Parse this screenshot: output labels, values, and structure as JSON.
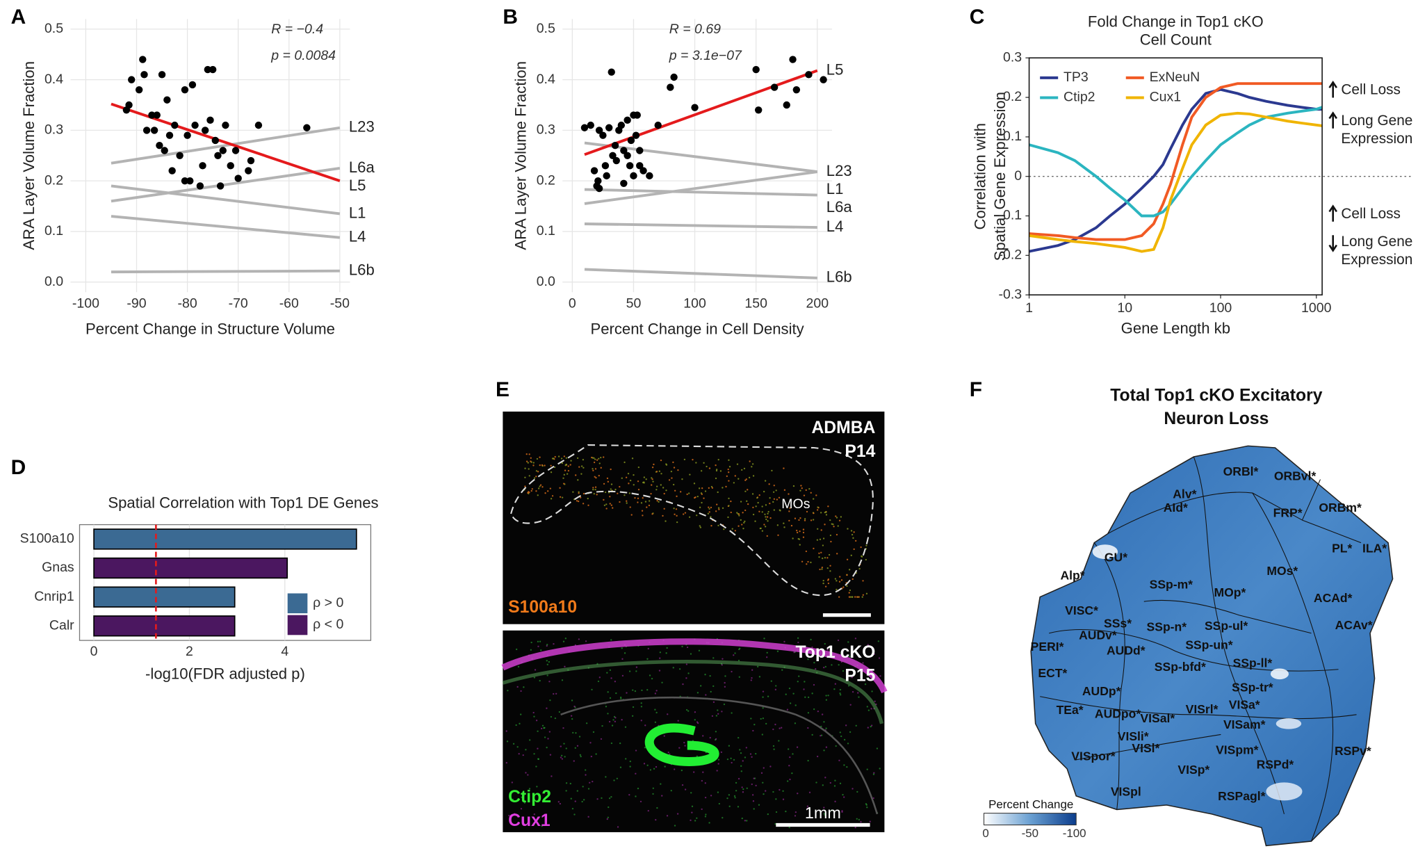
{
  "chart_data": [
    {
      "type": "scatter",
      "panel_label": "A",
      "x_label": "Percent Change in Structure Volume",
      "y_label": "ARA Layer Volume Fraction",
      "annotations": [
        "R = −0.4",
        "p = 0.0084"
      ],
      "grid": true,
      "xlim": [
        -103,
        -48
      ],
      "xticks": [
        -100,
        -90,
        -80,
        -70,
        -60,
        -50
      ],
      "ylim": [
        -0.02,
        0.52
      ],
      "yticks": [
        {
          "value": 0,
          "label": "0.0"
        },
        0.1,
        0.2,
        0.3,
        0.4,
        0.5
      ],
      "points": {
        "color": "#000000",
        "x": [
          -92,
          -91.5,
          -91,
          -89.5,
          -88.8,
          -88.5,
          -88,
          -87,
          -86.5,
          -86,
          -85.5,
          -85,
          -84.5,
          -84,
          -83.5,
          -83,
          -82.5,
          -81.5,
          -80.5,
          -80,
          -79.5,
          -79,
          -78.5,
          -77.5,
          -77,
          -76.5,
          -76,
          -75.5,
          -75,
          -74.5,
          -74,
          -73.5,
          -73,
          -72.5,
          -71.5,
          -70.5,
          -70,
          -68,
          -67.5,
          -66,
          -56.5,
          -80.5
        ],
        "y": [
          0.34,
          0.35,
          0.4,
          0.38,
          0.44,
          0.41,
          0.3,
          0.33,
          0.3,
          0.33,
          0.27,
          0.41,
          0.26,
          0.36,
          0.29,
          0.22,
          0.31,
          0.25,
          0.38,
          0.29,
          0.2,
          0.39,
          0.31,
          0.19,
          0.23,
          0.3,
          0.42,
          0.32,
          0.42,
          0.28,
          0.25,
          0.19,
          0.26,
          0.31,
          0.23,
          0.26,
          0.205,
          0.22,
          0.24,
          0.31,
          0.305,
          0.2
        ]
      },
      "series": [
        {
          "name": "L23",
          "color": "#b3b3b3",
          "x": [
            -95,
            -50
          ],
          "values": [
            0.235,
            0.305
          ]
        },
        {
          "name": "L6a",
          "color": "#b3b3b3",
          "x": [
            -95,
            -50
          ],
          "values": [
            0.16,
            0.225
          ]
        },
        {
          "name": "L1",
          "color": "#b3b3b3",
          "x": [
            -95,
            -50
          ],
          "values": [
            0.19,
            0.135
          ]
        },
        {
          "name": "L4",
          "color": "#b3b3b3",
          "x": [
            -95,
            -50
          ],
          "values": [
            0.13,
            0.088
          ]
        },
        {
          "name": "L6b",
          "color": "#b3b3b3",
          "x": [
            -95,
            -50
          ],
          "values": [
            0.02,
            0.022
          ]
        },
        {
          "name": "L5",
          "color": "#e41a1c",
          "x": [
            -95,
            -50
          ],
          "values": [
            0.352,
            0.2
          ]
        }
      ]
    },
    {
      "type": "scatter",
      "panel_label": "B",
      "x_label": "Percent Change in Cell Density",
      "y_label": "ARA Layer Volume Fraction",
      "annotations": [
        "R = 0.69",
        "p = 3.1e−07"
      ],
      "grid": true,
      "xlim": [
        -8,
        212
      ],
      "xticks": [
        0,
        50,
        100,
        150,
        200
      ],
      "ylim": [
        -0.02,
        0.52
      ],
      "yticks": [
        {
          "value": 0,
          "label": "0.0"
        },
        0.1,
        0.2,
        0.3,
        0.4,
        0.5
      ],
      "points": {
        "color": "#000000",
        "x": [
          10,
          15,
          18,
          20,
          21,
          22,
          22,
          25,
          27,
          28,
          30,
          32,
          33,
          35,
          36,
          38,
          40,
          42,
          42,
          45,
          45,
          47,
          48,
          50,
          50,
          52,
          53,
          55,
          55,
          58,
          63,
          70,
          80,
          83,
          100,
          150,
          152,
          165,
          175,
          180,
          183,
          193,
          205
        ],
        "y": [
          0.305,
          0.31,
          0.22,
          0.19,
          0.2,
          0.185,
          0.3,
          0.29,
          0.23,
          0.21,
          0.305,
          0.415,
          0.25,
          0.27,
          0.24,
          0.3,
          0.31,
          0.26,
          0.195,
          0.32,
          0.25,
          0.23,
          0.28,
          0.33,
          0.21,
          0.29,
          0.33,
          0.26,
          0.23,
          0.22,
          0.21,
          0.31,
          0.385,
          0.405,
          0.345,
          0.42,
          0.34,
          0.385,
          0.35,
          0.44,
          0.38,
          0.41,
          0.4
        ]
      },
      "series": [
        {
          "name": "L23",
          "color": "#b3b3b3",
          "x": [
            10,
            200
          ],
          "values": [
            0.275,
            0.218
          ]
        },
        {
          "name": "L1",
          "color": "#b3b3b3",
          "x": [
            10,
            200
          ],
          "values": [
            0.155,
            0.218
          ]
        },
        {
          "name": "L6a",
          "color": "#b3b3b3",
          "x": [
            10,
            200
          ],
          "values": [
            0.183,
            0.172
          ]
        },
        {
          "name": "L4",
          "color": "#b3b3b3",
          "x": [
            10,
            200
          ],
          "values": [
            0.115,
            0.108
          ]
        },
        {
          "name": "L6b",
          "color": "#b3b3b3",
          "x": [
            10,
            200
          ],
          "values": [
            0.025,
            0.008
          ]
        },
        {
          "name": "L5",
          "color": "#e41a1c",
          "x": [
            10,
            200
          ],
          "values": [
            0.252,
            0.418
          ]
        }
      ]
    },
    {
      "type": "line",
      "panel_label": "C",
      "title_lines": [
        "Fold Change in Top1 cKO",
        "Cell Count"
      ],
      "y_label_lines": [
        "Correlation with",
        "Spatial Gene Expression"
      ],
      "x_label": "Gene Length kb",
      "log_x": true,
      "xlim": [
        1,
        1150
      ],
      "xticks": [
        1,
        10,
        100,
        1000
      ],
      "ylim": [
        -0.3,
        0.3
      ],
      "yticks": [
        -0.3,
        -0.2,
        -0.1,
        0,
        0.1,
        0.2,
        0.3
      ],
      "zero_line": true,
      "x": [
        1,
        2,
        3,
        5,
        7,
        10,
        15,
        20,
        25,
        30,
        40,
        50,
        70,
        100,
        150,
        200,
        300,
        500,
        700,
        1000,
        1150
      ],
      "series": [
        {
          "name": "TP3",
          "color": "#2b3990",
          "values": [
            -0.19,
            -0.175,
            -0.16,
            -0.13,
            -0.1,
            -0.07,
            -0.03,
            0.0,
            0.03,
            0.07,
            0.13,
            0.17,
            0.21,
            0.22,
            0.21,
            0.2,
            0.19,
            0.18,
            0.175,
            0.17,
            0.17
          ]
        },
        {
          "name": "ExNeuN",
          "color": "#f15a24",
          "values": [
            -0.145,
            -0.15,
            -0.155,
            -0.16,
            -0.16,
            -0.16,
            -0.15,
            -0.12,
            -0.07,
            -0.02,
            0.08,
            0.15,
            0.2,
            0.225,
            0.235,
            0.235,
            0.235,
            0.235,
            0.235,
            0.235,
            0.235
          ]
        },
        {
          "name": "Ctip2",
          "color": "#2bb5c0",
          "values": [
            0.08,
            0.06,
            0.04,
            0.0,
            -0.03,
            -0.06,
            -0.1,
            -0.1,
            -0.09,
            -0.07,
            -0.03,
            0.0,
            0.04,
            0.08,
            0.11,
            0.13,
            0.15,
            0.16,
            0.165,
            0.17,
            0.175
          ]
        },
        {
          "name": "Cux1",
          "color": "#f0b400",
          "values": [
            -0.15,
            -0.16,
            -0.165,
            -0.17,
            -0.175,
            -0.18,
            -0.19,
            -0.185,
            -0.13,
            -0.06,
            0.02,
            0.08,
            0.13,
            0.155,
            0.16,
            0.158,
            0.15,
            0.14,
            0.135,
            0.13,
            0.128
          ]
        }
      ],
      "annotations": [
        {
          "lines": [
            "Cell Loss"
          ],
          "arrow": "up"
        },
        {
          "lines": [
            "Long Gene",
            "Expression"
          ],
          "arrow": "up"
        },
        {
          "lines": [
            "Cell Loss"
          ],
          "arrow": "up"
        },
        {
          "lines": [
            "Long Gene",
            "Expression"
          ],
          "arrow": "down"
        }
      ]
    },
    {
      "type": "barh",
      "panel_label": "D",
      "title": "Spatial Correlation with Top1 DE Genes",
      "x_label": "-log10(FDR adjusted p)",
      "categories": [
        "S100a10",
        "Gnas",
        "Cnrip1",
        "Calr"
      ],
      "series": [
        {
          "name": "ρ > 0",
          "color": "#3b6a93",
          "values": [
            5.5,
            null,
            2.95,
            null
          ]
        },
        {
          "name": "ρ < 0",
          "color": "#4b1760",
          "values": [
            null,
            4.05,
            null,
            2.95
          ]
        }
      ],
      "xlim": [
        -0.3,
        5.8
      ],
      "xticks": [
        0,
        2,
        4
      ],
      "grid": true,
      "threshold": 1.3,
      "threshold_color": "#e41a1c",
      "legend": "lower right"
    }
  ],
  "panel_e": {
    "label": "E",
    "top": {
      "title": "ADMBA",
      "age": "P14",
      "region": "MOs",
      "stain": "S100a10"
    },
    "bottom": {
      "title": "Top1 cKO",
      "age": "P15",
      "stains": [
        "Ctip2",
        "Cux1"
      ],
      "scale_bar": "1mm"
    }
  },
  "panel_f": {
    "label": "F",
    "title_lines": [
      "Total Top1 cKO Excitatory",
      "Neuron Loss"
    ],
    "regions": [
      "ORBl*",
      "ORBvl*",
      "Alv*",
      "AId*",
      "FRP*",
      "ORBm*",
      "PL*",
      "ILA*",
      "GU*",
      "MOs*",
      "Alp*",
      "SSp-m*",
      "MOp*",
      "ACAd*",
      "VISC*",
      "SSs*",
      "SSp-n*",
      "SSp-ul*",
      "ACAv*",
      "PERI*",
      "AUDv*",
      "SSp-un*",
      "AUDd*",
      "SSp-bfd*",
      "SSp-ll*",
      "ECT*",
      "AUDp*",
      "SSp-tr*",
      "VISrl*",
      "VISa*",
      "TEa*",
      "AUDpo*",
      "VISal*",
      "VISam*",
      "VISli*",
      "VISl*",
      "VISpm*",
      "VISpor*",
      "RSPv*",
      "RSPd*",
      "VISp*",
      "RSPagl*",
      "VISpl"
    ],
    "colorbar": {
      "title": "Percent Change",
      "ticks": [
        "0",
        "-50",
        "-100"
      ]
    }
  }
}
